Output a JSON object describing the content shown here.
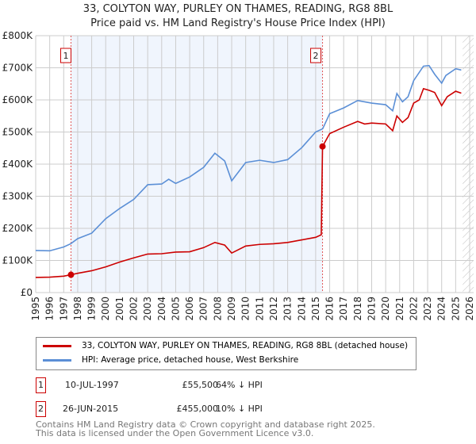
{
  "title": "33, COLYTON WAY, PURLEY ON THAMES, READING, RG8 8BL",
  "subtitle": "Price paid vs. HM Land Registry's House Price Index (HPI)",
  "chart_data": {
    "type": "line",
    "xlim": [
      1995,
      2026
    ],
    "ylim": [
      0,
      800000
    ],
    "x_ticks": [
      "1995",
      "1996",
      "1997",
      "1998",
      "1999",
      "2000",
      "2001",
      "2002",
      "2003",
      "2004",
      "2005",
      "2006",
      "2007",
      "2008",
      "2009",
      "2010",
      "2011",
      "2012",
      "2013",
      "2014",
      "2015",
      "2016",
      "2017",
      "2018",
      "2019",
      "2020",
      "2021",
      "2022",
      "2023",
      "2024",
      "2025",
      "2026"
    ],
    "y_ticks": [
      {
        "v": 0,
        "label": "£0"
      },
      {
        "v": 100000,
        "label": "£100K"
      },
      {
        "v": 200000,
        "label": "£200K"
      },
      {
        "v": 300000,
        "label": "£300K"
      },
      {
        "v": 400000,
        "label": "£400K"
      },
      {
        "v": 500000,
        "label": "£500K"
      },
      {
        "v": 600000,
        "label": "£600K"
      },
      {
        "v": 700000,
        "label": "£700K"
      },
      {
        "v": 800000,
        "label": "£800K"
      }
    ],
    "series": [
      {
        "name": "33, COLYTON WAY, PURLEY ON THAMES, READING, RG8 8BL (detached house)",
        "color": "#cc0000",
        "points": [
          [
            1995,
            47000
          ],
          [
            1996,
            48000
          ],
          [
            1997,
            51000
          ],
          [
            1997.52,
            55500
          ],
          [
            1998,
            60000
          ],
          [
            1999,
            68000
          ],
          [
            2000,
            80000
          ],
          [
            2001,
            95000
          ],
          [
            2002,
            108000
          ],
          [
            2003,
            120000
          ],
          [
            2004,
            121000
          ],
          [
            2005,
            126000
          ],
          [
            2006,
            127000
          ],
          [
            2007,
            140000
          ],
          [
            2007.8,
            156000
          ],
          [
            2008.5,
            148000
          ],
          [
            2009,
            123000
          ],
          [
            2010,
            145000
          ],
          [
            2011,
            150000
          ],
          [
            2012,
            152000
          ],
          [
            2013,
            156000
          ],
          [
            2014,
            164000
          ],
          [
            2015,
            172000
          ],
          [
            2015.4,
            180000
          ],
          [
            2015.49,
            455000
          ],
          [
            2016,
            495000
          ],
          [
            2017,
            515000
          ],
          [
            2018,
            533000
          ],
          [
            2018.5,
            525000
          ],
          [
            2019,
            528000
          ],
          [
            2020,
            525000
          ],
          [
            2020.5,
            504000
          ],
          [
            2020.8,
            550000
          ],
          [
            2021.2,
            530000
          ],
          [
            2021.6,
            545000
          ],
          [
            2022,
            590000
          ],
          [
            2022.4,
            600000
          ],
          [
            2022.7,
            635000
          ],
          [
            2023.1,
            630000
          ],
          [
            2023.5,
            623000
          ],
          [
            2024,
            582000
          ],
          [
            2024.4,
            610000
          ],
          [
            2025,
            627000
          ],
          [
            2025.4,
            621000
          ]
        ]
      },
      {
        "name": "HPI: Average price, detached house, West Berkshire",
        "color": "#5b8fd6",
        "points": [
          [
            1995,
            131000
          ],
          [
            1996,
            130000
          ],
          [
            1997,
            142000
          ],
          [
            1997.5,
            152000
          ],
          [
            1998,
            168000
          ],
          [
            1999,
            185000
          ],
          [
            2000,
            230000
          ],
          [
            2001,
            262000
          ],
          [
            2002,
            290000
          ],
          [
            2003,
            336000
          ],
          [
            2004,
            338000
          ],
          [
            2004.5,
            353000
          ],
          [
            2005,
            340000
          ],
          [
            2006,
            360000
          ],
          [
            2007,
            390000
          ],
          [
            2007.8,
            434000
          ],
          [
            2008.5,
            410000
          ],
          [
            2009,
            348000
          ],
          [
            2010,
            405000
          ],
          [
            2011,
            412000
          ],
          [
            2012,
            405000
          ],
          [
            2013,
            414000
          ],
          [
            2014,
            451000
          ],
          [
            2015,
            500000
          ],
          [
            2015.5,
            510000
          ],
          [
            2016,
            557000
          ],
          [
            2017,
            575000
          ],
          [
            2018,
            598000
          ],
          [
            2019,
            590000
          ],
          [
            2020,
            585000
          ],
          [
            2020.5,
            566000
          ],
          [
            2020.8,
            620000
          ],
          [
            2021.2,
            594000
          ],
          [
            2021.6,
            610000
          ],
          [
            2022,
            660000
          ],
          [
            2022.7,
            705000
          ],
          [
            2023.1,
            707000
          ],
          [
            2023.5,
            680000
          ],
          [
            2024,
            652000
          ],
          [
            2024.3,
            676000
          ],
          [
            2025,
            697000
          ],
          [
            2025.4,
            693000
          ]
        ]
      }
    ],
    "sales": [
      {
        "label": "1",
        "x": 1997.52,
        "y": 55500
      },
      {
        "label": "2",
        "x": 2015.49,
        "y": 455000
      }
    ],
    "shaded_range": [
      1997.52,
      2015.49
    ],
    "forecast_from": 2025.5,
    "legend": "below"
  },
  "legend": {
    "red": "33, COLYTON WAY, PURLEY ON THAMES, READING, RG8 8BL (detached house)",
    "blue": "HPI: Average price, detached house, West Berkshire"
  },
  "sales_table": [
    {
      "num": "1",
      "date": "10-JUL-1997",
      "price": "£55,500",
      "delta": "64% ↓ HPI"
    },
    {
      "num": "2",
      "date": "26-JUN-2015",
      "price": "£455,000",
      "delta": "10% ↓ HPI"
    }
  ],
  "footer": [
    "Contains HM Land Registry data © Crown copyright and database right 2025.",
    "This data is licensed under the Open Government Licence v3.0."
  ]
}
